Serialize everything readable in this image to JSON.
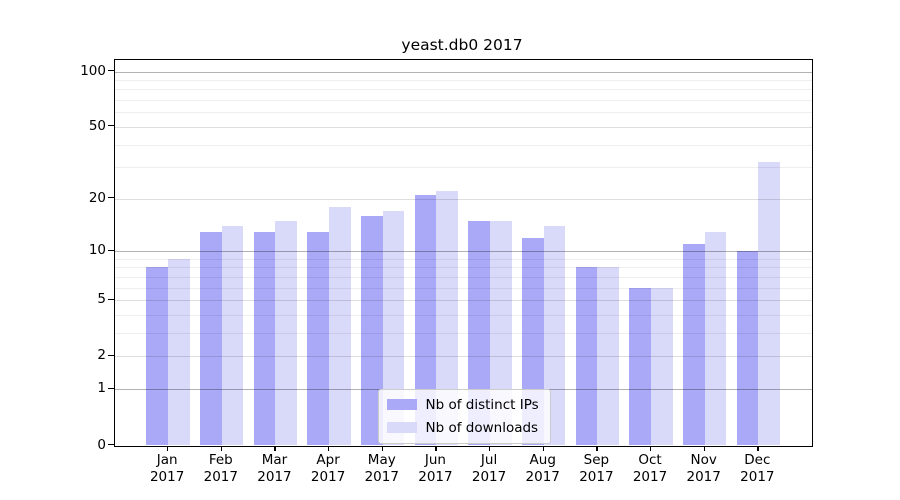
{
  "chart_data": {
    "type": "bar",
    "title": "yeast.db0 2017",
    "categories": [
      "Jan",
      "Feb",
      "Mar",
      "Apr",
      "May",
      "Jun",
      "Jul",
      "Aug",
      "Sep",
      "Oct",
      "Nov",
      "Dec"
    ],
    "year_label": "2017",
    "series": [
      {
        "name": "Nb of distinct IPs",
        "color": "#a9a9f8",
        "values": [
          8,
          13,
          13,
          13,
          16,
          21,
          15,
          12,
          8,
          6,
          11,
          10
        ]
      },
      {
        "name": "Nb of downloads",
        "color": "#d9d9f9",
        "values": [
          9,
          14,
          15,
          18,
          17,
          22,
          15,
          14,
          8,
          6,
          13,
          32
        ]
      }
    ],
    "xlabel": "",
    "ylabel": "",
    "y_axis": {
      "scale": "log1p",
      "tick_labels": [
        "0",
        "1",
        "2",
        "5",
        "10",
        "20",
        "50",
        "100"
      ],
      "ticks": [
        0,
        1,
        2,
        5,
        10,
        20,
        50,
        100
      ],
      "ylim": [
        0,
        115
      ]
    },
    "gridlines": {
      "major": [
        1,
        10,
        100
      ],
      "mid": [
        2,
        5,
        20,
        50
      ],
      "minor": [
        3,
        4,
        6,
        7,
        8,
        9,
        30,
        40,
        60,
        70,
        80,
        90
      ],
      "grid_on": true,
      "grid_over_bars": true
    },
    "legend_position": "bottom-center",
    "colors": {
      "bar_ips": "#a9a9f8",
      "bar_downloads": "#d9d9f9",
      "axis": "#000000",
      "background": "#ffffff"
    }
  }
}
